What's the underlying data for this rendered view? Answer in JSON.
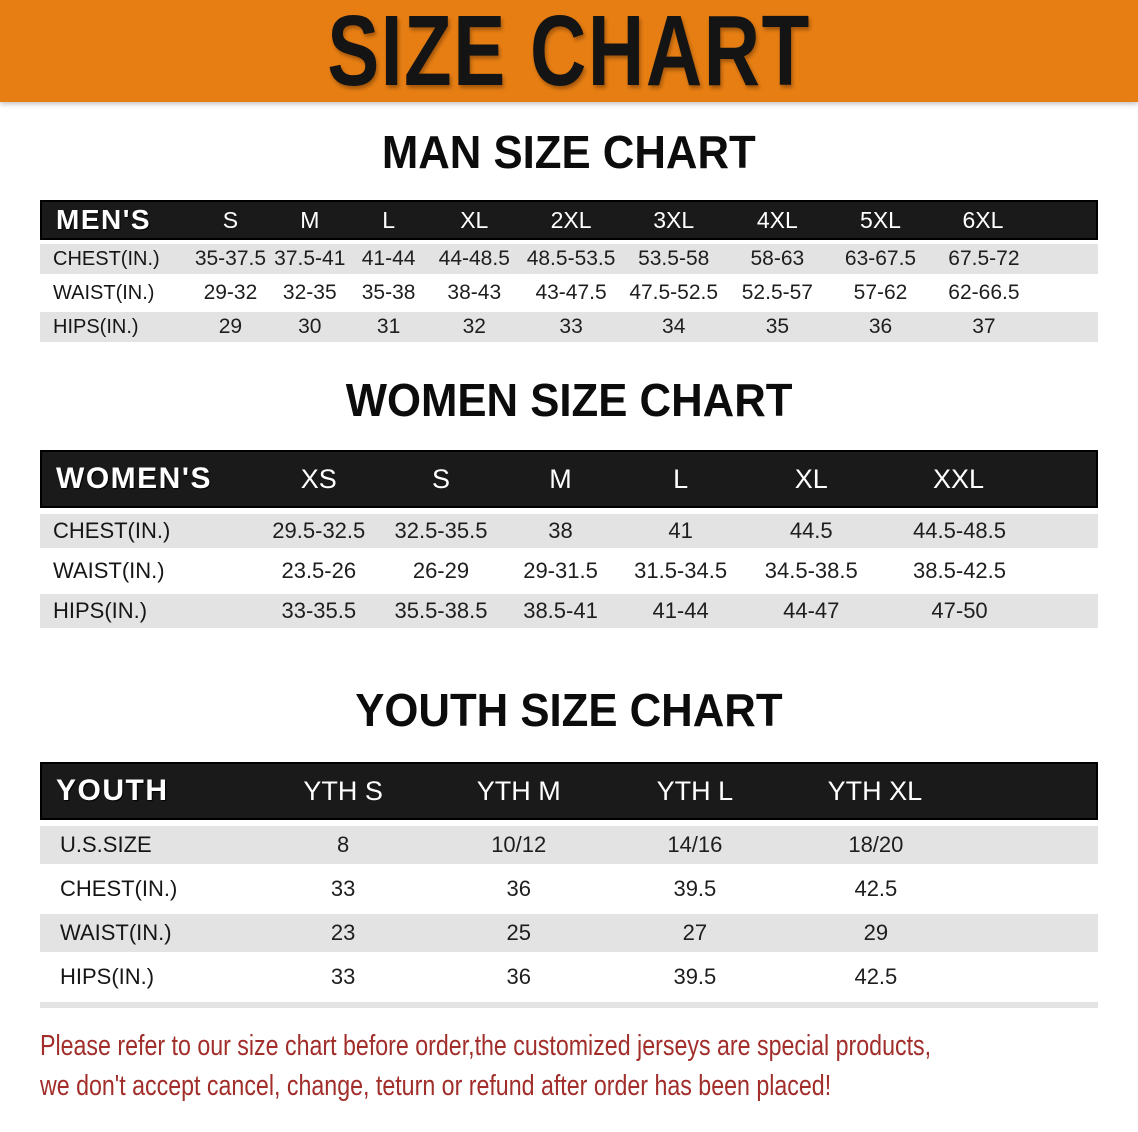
{
  "banner": {
    "title": "SIZE CHART",
    "bg_color": "#e67e13"
  },
  "colors": {
    "header_bar": "#1a1a1a",
    "row_stripe": "#e3e3e3",
    "footer_text": "#a12e2a"
  },
  "sections": [
    {
      "id": "men",
      "title": "MAN SIZE CHART",
      "corner_label": "MEN'S",
      "columns": [
        "S",
        "M",
        "L",
        "XL",
        "2XL",
        "3XL",
        "4XL",
        "5XL",
        "6XL"
      ],
      "rows": [
        {
          "label": "CHEST(IN.)",
          "values": [
            "35-37.5",
            "37.5-41",
            "41-44",
            "44-48.5",
            "48.5-53.5",
            "53.5-58",
            "58-63",
            "63-67.5",
            "67.5-72"
          ]
        },
        {
          "label": "WAIST(IN.)",
          "values": [
            "29-32",
            "32-35",
            "35-38",
            "38-43",
            "43-47.5",
            "47.5-52.5",
            "52.5-57",
            "57-62",
            "62-66.5"
          ]
        },
        {
          "label": "HIPS(IN.)",
          "values": [
            "29",
            "30",
            "31",
            "32",
            "33",
            "34",
            "35",
            "36",
            "37"
          ]
        }
      ]
    },
    {
      "id": "women",
      "title": "WOMEN SIZE CHART",
      "corner_label": "WOMEN'S",
      "columns": [
        "XS",
        "S",
        "M",
        "L",
        "XL",
        "XXL"
      ],
      "rows": [
        {
          "label": "CHEST(IN.)",
          "values": [
            "29.5-32.5",
            "32.5-35.5",
            "38",
            "41",
            "44.5",
            "44.5-48.5"
          ]
        },
        {
          "label": "WAIST(IN.)",
          "values": [
            "23.5-26",
            "26-29",
            "29-31.5",
            "31.5-34.5",
            "34.5-38.5",
            "38.5-42.5"
          ]
        },
        {
          "label": "HIPS(IN.)",
          "values": [
            "33-35.5",
            "35.5-38.5",
            "38.5-41",
            "41-44",
            "44-47",
            "47-50"
          ]
        }
      ]
    },
    {
      "id": "youth",
      "title": "YOUTH SIZE CHART",
      "corner_label": "YOUTH",
      "columns": [
        "YTH S",
        "YTH M",
        "YTH L",
        "YTH XL"
      ],
      "rows": [
        {
          "label": "U.S.SIZE",
          "values": [
            "8",
            "10/12",
            "14/16",
            "18/20"
          ]
        },
        {
          "label": "CHEST(IN.)",
          "values": [
            "33",
            "36",
            "39.5",
            "42.5"
          ]
        },
        {
          "label": "WAIST(IN.)",
          "values": [
            "23",
            "25",
            "27",
            "29"
          ]
        },
        {
          "label": "HIPS(IN.)",
          "values": [
            "33",
            "36",
            "39.5",
            "42.5"
          ]
        }
      ]
    }
  ],
  "footer": {
    "lines": [
      "Please refer to our size chart before order,the customized jerseys are special products,",
      "we don't accept cancel, change, teturn or refund after order has been placed!"
    ]
  }
}
